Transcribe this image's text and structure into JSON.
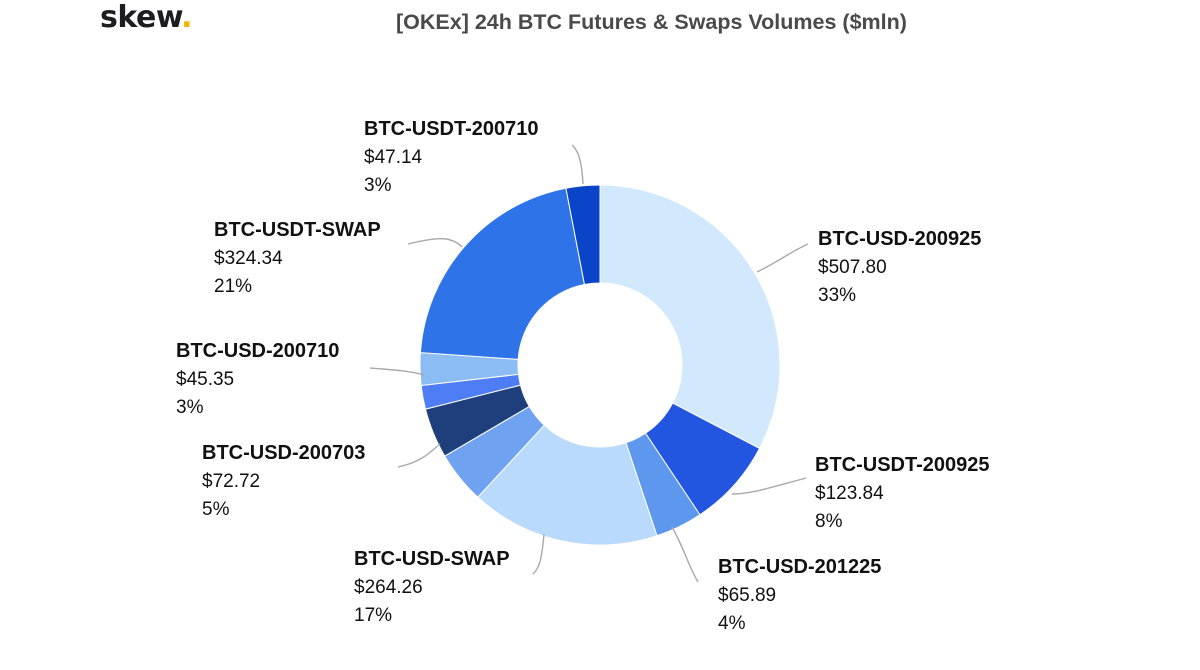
{
  "brand": {
    "name": "skew",
    "dot": "."
  },
  "chart_data": {
    "type": "pie",
    "donut": true,
    "title": "[OKEx] 24h BTC Futures & Swaps Volumes ($mln)",
    "slices": [
      {
        "name": "BTC-USD-200925",
        "value": 507.8,
        "value_label": "$507.80",
        "pct_label": "33%",
        "color": "#d2e8fd"
      },
      {
        "name": "BTC-USDT-200925",
        "value": 123.84,
        "value_label": "$123.84",
        "pct_label": "8%",
        "color": "#2356e0"
      },
      {
        "name": "BTC-USD-201225",
        "value": 65.89,
        "value_label": "$65.89",
        "pct_label": "4%",
        "color": "#5e97ee"
      },
      {
        "name": "BTC-USD-SWAP",
        "value": 264.26,
        "value_label": "$264.26",
        "pct_label": "17%",
        "color": "#b9dafc"
      },
      {
        "name": "BTC-USD-200703",
        "value": 72.72,
        "value_label": "$72.72",
        "pct_label": "5%",
        "color": "#6fa3f2"
      },
      {
        "name": "",
        "value": 70.0,
        "value_label": "",
        "pct_label": "",
        "color": "#1f3f7c"
      },
      {
        "name": "",
        "value": 33.0,
        "value_label": "",
        "pct_label": "",
        "color": "#4f7df5"
      },
      {
        "name": "BTC-USD-200710",
        "value": 45.35,
        "value_label": "$45.35",
        "pct_label": "3%",
        "color": "#8cbcf4"
      },
      {
        "name": "BTC-USDT-SWAP",
        "value": 324.34,
        "value_label": "$324.34",
        "pct_label": "21%",
        "color": "#2e73e8"
      },
      {
        "name": "BTC-USDT-200710",
        "value": 47.14,
        "value_label": "$47.14",
        "pct_label": "3%",
        "color": "#0a45c9"
      }
    ]
  }
}
